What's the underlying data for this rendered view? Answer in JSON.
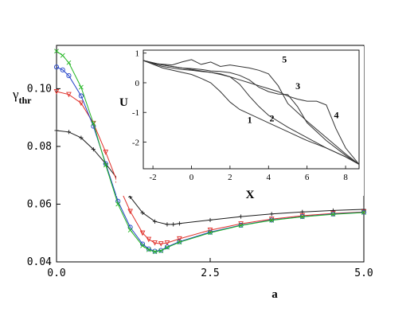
{
  "chart_data": [
    {
      "type": "line",
      "xlabel": "a",
      "ylabel": "γ",
      "ylabel_subscript": "thr",
      "xlim": [
        0,
        5
      ],
      "ylim": [
        0.04,
        0.115
      ],
      "xticks": [
        0,
        2.5,
        5
      ],
      "xtick_labels": [
        "0.0",
        "2.5",
        "5.0"
      ],
      "yticks": [
        0.04,
        0.06,
        0.08,
        0.1
      ],
      "ytick_labels": [
        "0.04",
        "0.06",
        "0.08",
        "0.10"
      ],
      "grid": false,
      "series": [
        {
          "color": "#1a1a1a",
          "marker": "plus",
          "x": [
            0.0,
            0.2,
            0.4,
            0.6,
            0.8,
            1.0,
            1.2,
            1.4,
            1.6,
            1.8,
            1.9,
            2.0,
            2.5,
            3.0,
            3.5,
            4.0,
            4.5,
            5.0
          ],
          "y": [
            0.0855,
            0.085,
            0.083,
            0.079,
            0.074,
            0.0685,
            0.0625,
            0.057,
            0.054,
            0.053,
            0.053,
            0.0533,
            0.0545,
            0.0557,
            0.0566,
            0.0573,
            0.0578,
            0.0582
          ]
        },
        {
          "color": "#e0302a",
          "marker": "triangle",
          "x": [
            0.0,
            0.2,
            0.4,
            0.6,
            0.8,
            1.0,
            1.2,
            1.4,
            1.5,
            1.6,
            1.7,
            1.8,
            2.0,
            2.5,
            3.0,
            3.5,
            4.0,
            4.5,
            5.0
          ],
          "y": [
            0.099,
            0.098,
            0.095,
            0.088,
            0.078,
            0.067,
            0.0575,
            0.05,
            0.0478,
            0.0466,
            0.0463,
            0.0466,
            0.048,
            0.051,
            0.0532,
            0.0548,
            0.056,
            0.0568,
            0.0573
          ]
        },
        {
          "color": "#2040c8",
          "marker": "circle",
          "x": [
            0.0,
            0.1,
            0.2,
            0.4,
            0.6,
            0.8,
            1.0,
            1.2,
            1.4,
            1.5,
            1.6,
            1.7,
            1.8,
            2.0,
            2.5,
            3.0,
            3.5,
            4.0,
            4.5,
            5.0
          ],
          "y": [
            0.1075,
            0.1065,
            0.1045,
            0.0975,
            0.087,
            0.074,
            0.061,
            0.052,
            0.0462,
            0.0445,
            0.0437,
            0.044,
            0.0452,
            0.047,
            0.0503,
            0.0527,
            0.0545,
            0.0557,
            0.0566,
            0.0572
          ]
        },
        {
          "color": "#22b522",
          "marker": "x",
          "x": [
            0.0,
            0.1,
            0.2,
            0.4,
            0.6,
            0.8,
            1.0,
            1.2,
            1.4,
            1.5,
            1.6,
            1.7,
            1.8,
            2.0,
            2.5,
            3.0,
            3.5,
            4.0,
            4.5,
            5.0
          ],
          "y": [
            0.113,
            0.1115,
            0.109,
            0.1005,
            0.088,
            0.0735,
            0.06,
            0.051,
            0.0456,
            0.0442,
            0.0435,
            0.0438,
            0.045,
            0.0468,
            0.0501,
            0.0526,
            0.0544,
            0.0556,
            0.0565,
            0.0571
          ]
        }
      ]
    },
    {
      "type": "line",
      "xlabel": "X",
      "ylabel": "U",
      "xlim": [
        -2.5,
        8.7
      ],
      "ylim": [
        -2.9,
        1.1
      ],
      "xticks": [
        -2,
        0,
        2,
        4,
        6,
        8
      ],
      "xtick_labels": [
        "-2",
        "0",
        "2",
        "4",
        "6",
        "8"
      ],
      "yticks": [
        -2,
        -1,
        0,
        1
      ],
      "ytick_labels": [
        "-2",
        "-1",
        "0",
        "1"
      ],
      "grid": false,
      "series": [
        {
          "label": "1",
          "color": "#333333",
          "x": [
            -2.5,
            -1.5,
            -0.5,
            0.0,
            0.5,
            1.0,
            1.5,
            2.0,
            2.5,
            3.0,
            3.5,
            4.0,
            5.0,
            6.0,
            7.0,
            8.0,
            8.7
          ],
          "y": [
            0.75,
            0.5,
            0.35,
            0.28,
            0.15,
            0.0,
            -0.3,
            -0.65,
            -0.9,
            -1.05,
            -1.2,
            -1.35,
            -1.65,
            -1.95,
            -2.2,
            -2.5,
            -2.75
          ]
        },
        {
          "label": "2",
          "color": "#333333",
          "x": [
            -2.5,
            -1.5,
            -0.5,
            0.0,
            0.5,
            1.0,
            1.5,
            2.0,
            2.5,
            3.0,
            3.5,
            4.0,
            5.0,
            6.0,
            7.0,
            8.0,
            8.7
          ],
          "y": [
            0.75,
            0.55,
            0.45,
            0.42,
            0.38,
            0.35,
            0.3,
            0.2,
            -0.05,
            -0.45,
            -0.8,
            -1.1,
            -1.5,
            -1.85,
            -2.2,
            -2.5,
            -2.75
          ]
        },
        {
          "label": "3",
          "color": "#333333",
          "x": [
            -2.5,
            -1.5,
            -0.5,
            0.0,
            0.5,
            1.0,
            1.5,
            2.0,
            2.5,
            3.0,
            3.5,
            4.0,
            4.5,
            5.0,
            5.5,
            6.0,
            7.0,
            8.0,
            8.7
          ],
          "y": [
            0.75,
            0.6,
            0.5,
            0.48,
            0.45,
            0.4,
            0.38,
            0.34,
            0.25,
            0.1,
            -0.15,
            -0.3,
            -0.38,
            -0.4,
            -0.8,
            -1.35,
            -1.95,
            -2.45,
            -2.75
          ]
        },
        {
          "label": "4",
          "color": "#333333",
          "x": [
            -2.5,
            -1.5,
            -0.5,
            0.0,
            0.5,
            1.0,
            1.5,
            2.0,
            2.5,
            3.0,
            3.5,
            4.0,
            4.5,
            5.0,
            5.5,
            6.0,
            6.5,
            7.0,
            7.5,
            8.0,
            8.7
          ],
          "y": [
            0.75,
            0.6,
            0.5,
            0.45,
            0.4,
            0.35,
            0.28,
            0.2,
            0.1,
            0.0,
            -0.1,
            -0.2,
            -0.3,
            -0.45,
            -0.55,
            -0.62,
            -0.62,
            -0.75,
            -1.55,
            -2.2,
            -2.75
          ]
        },
        {
          "label": "5",
          "color": "#333333",
          "x": [
            -2.5,
            -2.0,
            -1.0,
            -0.5,
            0.0,
            0.5,
            1.0,
            1.5,
            2.0,
            2.5,
            3.0,
            3.5,
            4.0,
            4.5,
            5.0,
            6.0,
            7.0,
            8.0,
            8.7
          ],
          "y": [
            0.75,
            0.65,
            0.6,
            0.7,
            0.78,
            0.62,
            0.7,
            0.55,
            0.6,
            0.55,
            0.5,
            0.42,
            0.3,
            -0.1,
            -0.7,
            -1.3,
            -1.85,
            -2.4,
            -2.75
          ]
        }
      ]
    }
  ]
}
